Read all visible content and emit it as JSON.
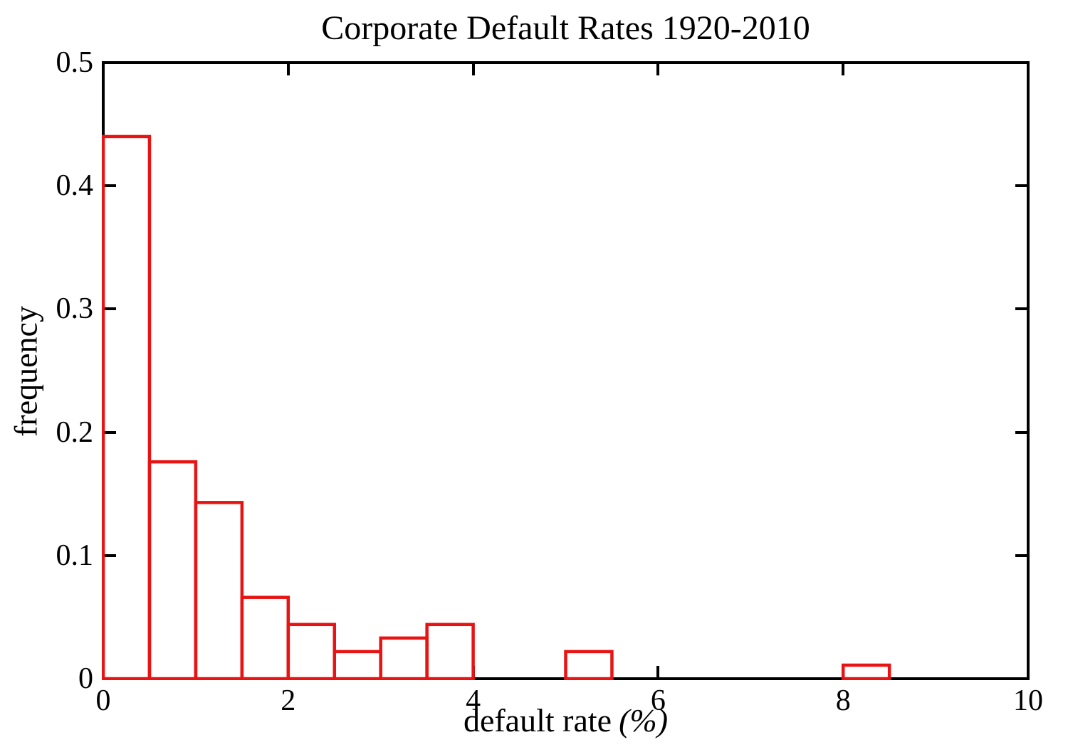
{
  "figure": {
    "background": "#ffffff",
    "axis_color": "#000000",
    "text_color": "#000000"
  },
  "chart_data": {
    "type": "bar",
    "subtype": "histogram",
    "title": "Corporate Default Rates 1920-2010",
    "xlabel": "default rate",
    "xlabel_suffix_italic": "(%)",
    "ylabel": "frequency",
    "xlim": [
      0,
      10
    ],
    "ylim": [
      0,
      0.5
    ],
    "x_ticks": [
      0,
      2,
      4,
      6,
      8,
      10
    ],
    "x_tick_labels": [
      "0",
      "2",
      "4",
      "6",
      "8",
      "10"
    ],
    "y_ticks": [
      0,
      0.1,
      0.2,
      0.3,
      0.4,
      0.5
    ],
    "y_tick_labels": [
      "0",
      "0.1",
      "0.2",
      "0.3",
      "0.4",
      "0.5"
    ],
    "grid": false,
    "legend": false,
    "box": true,
    "bin_width": 0.5,
    "bar_fill": "none",
    "bar_outline_color": "#e81414",
    "bins": [
      {
        "x0": 0.0,
        "x1": 0.5,
        "frequency": 0.44
      },
      {
        "x0": 0.5,
        "x1": 1.0,
        "frequency": 0.176
      },
      {
        "x0": 1.0,
        "x1": 1.5,
        "frequency": 0.143
      },
      {
        "x0": 1.5,
        "x1": 2.0,
        "frequency": 0.066
      },
      {
        "x0": 2.0,
        "x1": 2.5,
        "frequency": 0.044
      },
      {
        "x0": 2.5,
        "x1": 3.0,
        "frequency": 0.022
      },
      {
        "x0": 3.0,
        "x1": 3.5,
        "frequency": 0.033
      },
      {
        "x0": 3.5,
        "x1": 4.0,
        "frequency": 0.044
      },
      {
        "x0": 4.0,
        "x1": 4.5,
        "frequency": 0
      },
      {
        "x0": 4.5,
        "x1": 5.0,
        "frequency": 0
      },
      {
        "x0": 5.0,
        "x1": 5.5,
        "frequency": 0.022
      },
      {
        "x0": 5.5,
        "x1": 6.0,
        "frequency": 0
      },
      {
        "x0": 6.0,
        "x1": 6.5,
        "frequency": 0
      },
      {
        "x0": 6.5,
        "x1": 7.0,
        "frequency": 0
      },
      {
        "x0": 7.0,
        "x1": 7.5,
        "frequency": 0
      },
      {
        "x0": 7.5,
        "x1": 8.0,
        "frequency": 0
      },
      {
        "x0": 8.0,
        "x1": 8.5,
        "frequency": 0.011
      },
      {
        "x0": 8.5,
        "x1": 9.0,
        "frequency": 0
      },
      {
        "x0": 9.0,
        "x1": 9.5,
        "frequency": 0
      },
      {
        "x0": 9.5,
        "x1": 10.0,
        "frequency": 0
      }
    ]
  }
}
